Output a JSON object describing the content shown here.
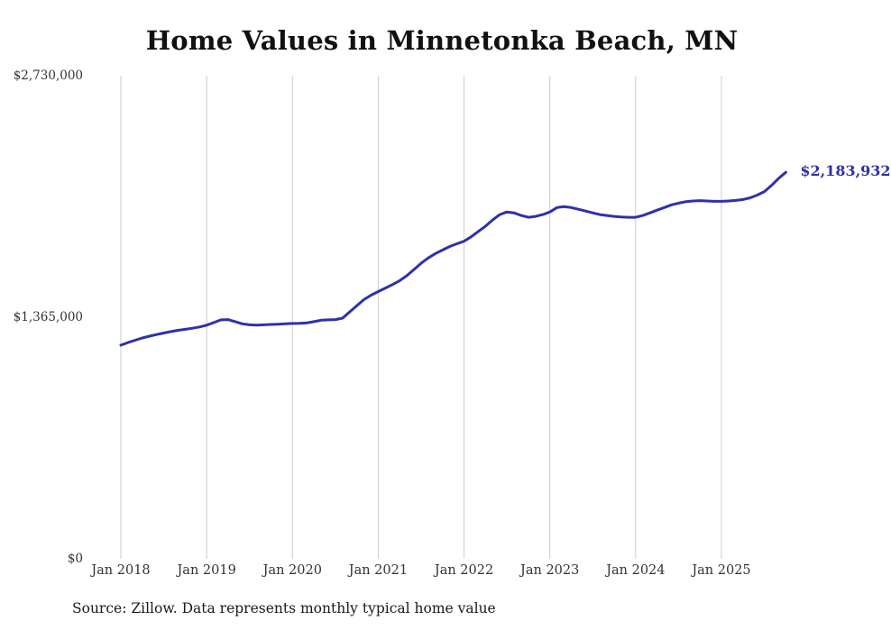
{
  "chart_data": {
    "type": "line",
    "title": "Home Values in Minnetonka Beach, MN",
    "source": "Source: Zillow. Data represents monthly typical home value",
    "latest_value_label": "$2,183,932",
    "latest_value": 2183932,
    "line_color": "#2e31aa",
    "grid_color": "#cccccc",
    "text_color": "#333333",
    "title_color": "#111111",
    "grid": "vertical-only",
    "legend": "none",
    "ylim": [
      0,
      2730000
    ],
    "y_ticks": [
      {
        "label": "$2,730,000",
        "value": 2730000
      },
      {
        "label": "$1,365,000",
        "value": 1365000
      },
      {
        "label": "$0",
        "value": 0
      }
    ],
    "x_ticks": [
      "Jan 2018",
      "Jan 2019",
      "Jan 2020",
      "Jan 2021",
      "Jan 2022",
      "Jan 2023",
      "Jan 2024",
      "Jan 2025"
    ],
    "x": [
      "2018-01",
      "2018-02",
      "2018-03",
      "2018-04",
      "2018-05",
      "2018-06",
      "2018-07",
      "2018-08",
      "2018-09",
      "2018-10",
      "2018-11",
      "2018-12",
      "2019-01",
      "2019-02",
      "2019-03",
      "2019-04",
      "2019-05",
      "2019-06",
      "2019-07",
      "2019-08",
      "2019-09",
      "2019-10",
      "2019-11",
      "2019-12",
      "2020-01",
      "2020-02",
      "2020-03",
      "2020-04",
      "2020-05",
      "2020-06",
      "2020-07",
      "2020-08",
      "2020-09",
      "2020-10",
      "2020-11",
      "2020-12",
      "2021-01",
      "2021-02",
      "2021-03",
      "2021-04",
      "2021-05",
      "2021-06",
      "2021-07",
      "2021-08",
      "2021-09",
      "2021-10",
      "2021-11",
      "2021-12",
      "2022-01",
      "2022-02",
      "2022-03",
      "2022-04",
      "2022-05",
      "2022-06",
      "2022-07",
      "2022-08",
      "2022-09",
      "2022-10",
      "2022-11",
      "2022-12",
      "2023-01",
      "2023-02",
      "2023-03",
      "2023-04",
      "2023-05",
      "2023-06",
      "2023-07",
      "2023-08",
      "2023-09",
      "2023-10",
      "2023-11",
      "2023-12",
      "2024-01",
      "2024-02",
      "2024-03",
      "2024-04",
      "2024-05",
      "2024-06",
      "2024-07",
      "2024-08",
      "2024-09",
      "2024-10",
      "2024-11",
      "2024-12",
      "2025-01",
      "2025-02",
      "2025-03",
      "2025-04",
      "2025-05",
      "2025-06",
      "2025-07",
      "2025-08",
      "2025-09",
      "2025-10"
    ],
    "values": [
      1207000,
      1222000,
      1235000,
      1248000,
      1258000,
      1267000,
      1276000,
      1284000,
      1291000,
      1297000,
      1303000,
      1310000,
      1320000,
      1335000,
      1350000,
      1352000,
      1340000,
      1328000,
      1322000,
      1320000,
      1322000,
      1324000,
      1326000,
      1328000,
      1330000,
      1331000,
      1333000,
      1340000,
      1348000,
      1350000,
      1352000,
      1360000,
      1395000,
      1430000,
      1465000,
      1490000,
      1510000,
      1530000,
      1550000,
      1572000,
      1600000,
      1635000,
      1670000,
      1700000,
      1725000,
      1745000,
      1765000,
      1780000,
      1795000,
      1820000,
      1850000,
      1880000,
      1915000,
      1945000,
      1960000,
      1955000,
      1940000,
      1930000,
      1935000,
      1945000,
      1960000,
      1985000,
      1990000,
      1985000,
      1975000,
      1965000,
      1955000,
      1945000,
      1940000,
      1935000,
      1932000,
      1930000,
      1930000,
      1940000,
      1955000,
      1970000,
      1985000,
      2000000,
      2010000,
      2018000,
      2022000,
      2024000,
      2022000,
      2020000,
      2020000,
      2022000,
      2025000,
      2030000,
      2040000,
      2055000,
      2075000,
      2110000,
      2150000,
      2183932
    ]
  }
}
